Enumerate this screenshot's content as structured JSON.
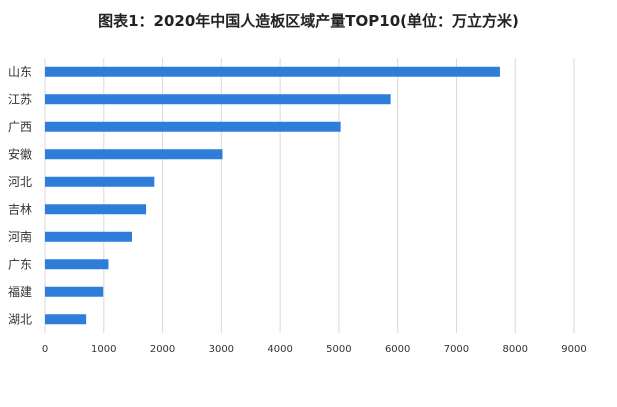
{
  "chart_data": {
    "type": "bar",
    "orientation": "horizontal",
    "title": "图表1：2020年中国人造板区域产量TOP10(单位：万立方米)",
    "categories": [
      "山东",
      "江苏",
      "广西",
      "安徽",
      "河北",
      "吉林",
      "河南",
      "广东",
      "福建",
      "湖北"
    ],
    "values": [
      7740,
      5880,
      5030,
      3020,
      1860,
      1720,
      1480,
      1080,
      990,
      700
    ],
    "x_ticks": [
      "0",
      "1000",
      "2000",
      "3000",
      "4000",
      "5000",
      "6000",
      "7000",
      "8000",
      "9000"
    ],
    "xlim": [
      0,
      9000
    ],
    "grid": true,
    "bar_color": "#2e7ddb",
    "grid_color": "#d9d9d9"
  }
}
